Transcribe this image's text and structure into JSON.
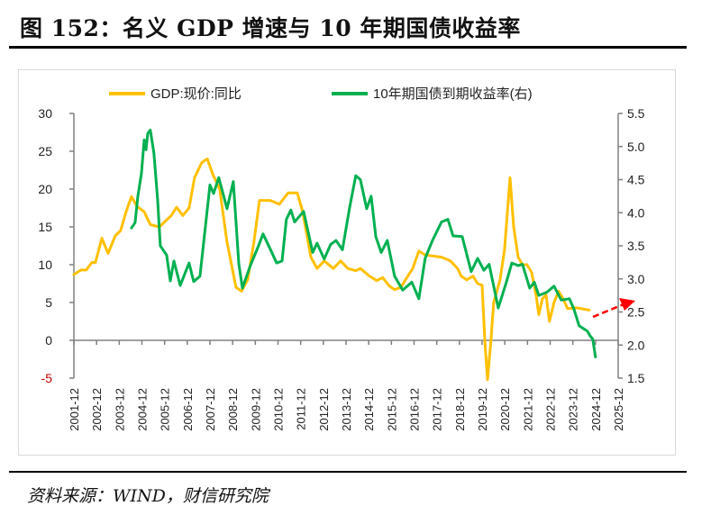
{
  "title": "图 152：名义 GDP 增速与 10 年期国债收益率",
  "source": "资料来源：WIND，财信研究院",
  "chart_data": {
    "type": "line",
    "title": "",
    "xlabel": "",
    "ylabel": "",
    "y2label": "",
    "legend_position": "top",
    "grid": false,
    "x_tick_labels": [
      "2001-12",
      "2002-12",
      "2003-12",
      "2004-12",
      "2005-12",
      "2006-12",
      "2007-12",
      "2008-12",
      "2009-12",
      "2010-12",
      "2011-12",
      "2012-12",
      "2013-12",
      "2014-12",
      "2015-12",
      "2016-12",
      "2017-12",
      "2018-12",
      "2019-12",
      "2020-12",
      "2021-12",
      "2022-12",
      "2023-12",
      "2024-12",
      "2025-12"
    ],
    "xlim": [
      2001.92,
      2025.92
    ],
    "ylim": [
      -5,
      30
    ],
    "y_ticks": [
      -5,
      0,
      5,
      10,
      15,
      20,
      25,
      30
    ],
    "y2lim": [
      1.5,
      5.5
    ],
    "y2_ticks": [
      "1.5",
      "2.0",
      "2.5",
      "3.0",
      "3.5",
      "4.0",
      "4.5",
      "5.0",
      "5.5"
    ],
    "series": [
      {
        "name": "GDP:现价:同比",
        "axis": "left",
        "color": "#FFC000",
        "points": [
          [
            2001.92,
            8.7
          ],
          [
            2002.23,
            9.3
          ],
          [
            2002.47,
            9.3
          ],
          [
            2002.71,
            10.3
          ],
          [
            2002.87,
            10.3
          ],
          [
            2003.15,
            13.5
          ],
          [
            2003.43,
            11.5
          ],
          [
            2003.74,
            13.8
          ],
          [
            2003.98,
            14.5
          ],
          [
            2004.22,
            17
          ],
          [
            2004.46,
            19
          ],
          [
            2004.7,
            17.7
          ],
          [
            2005.02,
            17
          ],
          [
            2005.29,
            15.3
          ],
          [
            2005.69,
            15
          ],
          [
            2006.21,
            16.5
          ],
          [
            2006.45,
            17.6
          ],
          [
            2006.72,
            16.5
          ],
          [
            2007.0,
            17.5
          ],
          [
            2007.24,
            21.5
          ],
          [
            2007.56,
            23.5
          ],
          [
            2007.8,
            24
          ],
          [
            2008.04,
            22
          ],
          [
            2008.35,
            20
          ],
          [
            2008.67,
            13
          ],
          [
            2009.07,
            7
          ],
          [
            2009.31,
            6.5
          ],
          [
            2009.58,
            8
          ],
          [
            2009.86,
            13
          ],
          [
            2010.1,
            18.5
          ],
          [
            2010.58,
            18.5
          ],
          [
            2010.98,
            18
          ],
          [
            2011.37,
            19.5
          ],
          [
            2011.77,
            19.5
          ],
          [
            2012.01,
            17
          ],
          [
            2012.37,
            11
          ],
          [
            2012.64,
            9.5
          ],
          [
            2012.96,
            10.5
          ],
          [
            2013.36,
            9.5
          ],
          [
            2013.68,
            10.5
          ],
          [
            2014.0,
            9.5
          ],
          [
            2014.35,
            9.2
          ],
          [
            2014.55,
            9.5
          ],
          [
            2014.95,
            8.5
          ],
          [
            2015.27,
            7.9
          ],
          [
            2015.54,
            8.3
          ],
          [
            2015.82,
            7.2
          ],
          [
            2016.06,
            6.7
          ],
          [
            2016.34,
            7
          ],
          [
            2016.54,
            8
          ],
          [
            2016.86,
            9.5
          ],
          [
            2017.13,
            11.8
          ],
          [
            2017.41,
            11.3
          ],
          [
            2018.13,
            11
          ],
          [
            2018.52,
            10.5
          ],
          [
            2018.84,
            9.5
          ],
          [
            2019.0,
            8.5
          ],
          [
            2019.24,
            8
          ],
          [
            2019.52,
            8.5
          ],
          [
            2019.72,
            7.5
          ],
          [
            2019.92,
            7.3
          ],
          [
            2020.04,
            0
          ],
          [
            2020.16,
            -5.2
          ],
          [
            2020.31,
            0
          ],
          [
            2020.43,
            5
          ],
          [
            2020.71,
            8
          ],
          [
            2020.91,
            12
          ],
          [
            2021.15,
            21.5
          ],
          [
            2021.31,
            15
          ],
          [
            2021.51,
            11
          ],
          [
            2021.7,
            10
          ],
          [
            2021.9,
            10
          ],
          [
            2022.1,
            9
          ],
          [
            2022.3,
            6
          ],
          [
            2022.42,
            3.4
          ],
          [
            2022.58,
            5.5
          ],
          [
            2022.74,
            6
          ],
          [
            2022.89,
            2.5
          ],
          [
            2023.09,
            5
          ],
          [
            2023.29,
            6.5
          ],
          [
            2023.49,
            5.5
          ],
          [
            2023.69,
            4.2
          ],
          [
            2024.09,
            4.3
          ],
          [
            2024.64,
            4.0
          ]
        ]
      },
      {
        "name": "10年期国债到期收益率(右)",
        "axis": "right",
        "color": "#00B050",
        "points": [
          [
            2004.46,
            3.77
          ],
          [
            2004.62,
            3.85
          ],
          [
            2004.74,
            4.25
          ],
          [
            2004.9,
            4.6
          ],
          [
            2005.02,
            5.1
          ],
          [
            2005.1,
            4.95
          ],
          [
            2005.18,
            5.2
          ],
          [
            2005.29,
            5.25
          ],
          [
            2005.45,
            4.9
          ],
          [
            2005.61,
            4.2
          ],
          [
            2005.73,
            3.5
          ],
          [
            2006.01,
            3.36
          ],
          [
            2006.17,
            2.97
          ],
          [
            2006.33,
            3.27
          ],
          [
            2006.61,
            2.9
          ],
          [
            2007.0,
            3.24
          ],
          [
            2007.2,
            2.96
          ],
          [
            2007.48,
            3.04
          ],
          [
            2007.92,
            4.42
          ],
          [
            2008.08,
            4.29
          ],
          [
            2008.31,
            4.53
          ],
          [
            2008.67,
            4.06
          ],
          [
            2008.95,
            4.47
          ],
          [
            2009.19,
            3.23
          ],
          [
            2009.35,
            2.86
          ],
          [
            2009.7,
            3.2
          ],
          [
            2010.06,
            3.5
          ],
          [
            2010.26,
            3.68
          ],
          [
            2010.58,
            3.45
          ],
          [
            2010.86,
            3.24
          ],
          [
            2011.1,
            3.27
          ],
          [
            2011.29,
            3.9
          ],
          [
            2011.49,
            4.04
          ],
          [
            2011.65,
            3.86
          ],
          [
            2012.05,
            4.02
          ],
          [
            2012.45,
            3.4
          ],
          [
            2012.64,
            3.54
          ],
          [
            2012.96,
            3.3
          ],
          [
            2013.24,
            3.52
          ],
          [
            2013.48,
            3.58
          ],
          [
            2013.76,
            3.44
          ],
          [
            2014.08,
            4.08
          ],
          [
            2014.35,
            4.56
          ],
          [
            2014.55,
            4.5
          ],
          [
            2014.83,
            4.06
          ],
          [
            2015.03,
            4.25
          ],
          [
            2015.23,
            3.64
          ],
          [
            2015.47,
            3.4
          ],
          [
            2015.74,
            3.58
          ],
          [
            2016.06,
            3.04
          ],
          [
            2016.42,
            2.83
          ],
          [
            2016.82,
            2.95
          ],
          [
            2017.13,
            2.7
          ],
          [
            2017.41,
            3.31
          ],
          [
            2017.73,
            3.58
          ],
          [
            2018.13,
            3.86
          ],
          [
            2018.41,
            3.9
          ],
          [
            2018.64,
            3.65
          ],
          [
            2019.04,
            3.64
          ],
          [
            2019.44,
            3.11
          ],
          [
            2019.72,
            3.31
          ],
          [
            2020.0,
            3.13
          ],
          [
            2020.23,
            3.22
          ],
          [
            2020.63,
            2.56
          ],
          [
            2020.99,
            2.95
          ],
          [
            2021.23,
            3.24
          ],
          [
            2021.51,
            3.2
          ],
          [
            2021.7,
            3.22
          ],
          [
            2022.02,
            2.86
          ],
          [
            2022.22,
            2.95
          ],
          [
            2022.42,
            2.75
          ],
          [
            2022.78,
            2.8
          ],
          [
            2023.09,
            2.89
          ],
          [
            2023.41,
            2.68
          ],
          [
            2023.77,
            2.7
          ],
          [
            2023.96,
            2.55
          ],
          [
            2024.2,
            2.29
          ],
          [
            2024.56,
            2.21
          ],
          [
            2024.68,
            2.14
          ],
          [
            2024.8,
            2.09
          ],
          [
            2024.92,
            1.82
          ]
        ]
      }
    ],
    "annotations": [
      {
        "type": "arrow",
        "style": "dashed",
        "color": "#FF0000"
      }
    ]
  }
}
